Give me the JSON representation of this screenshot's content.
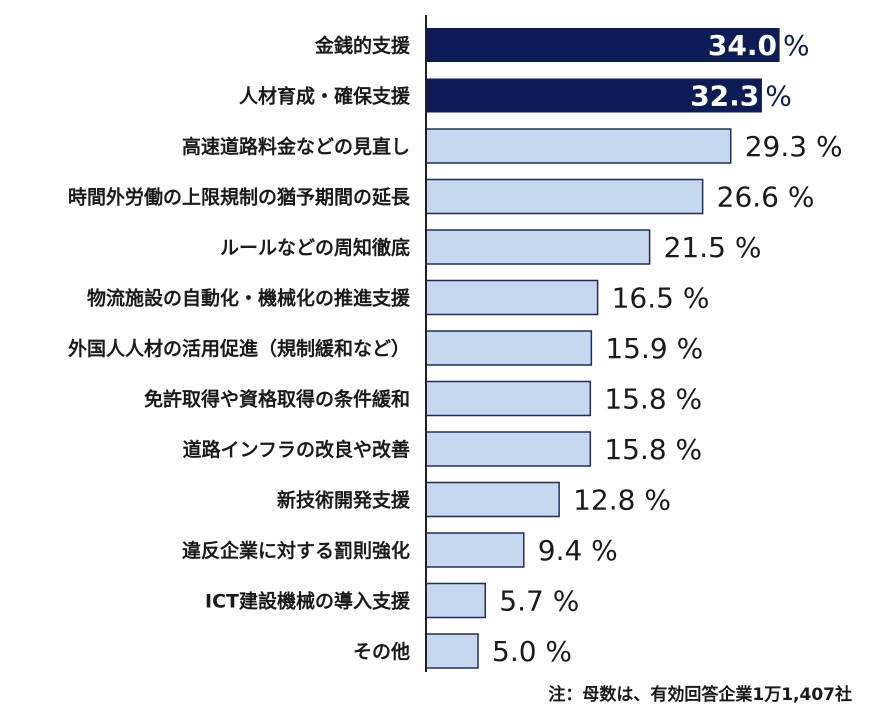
{
  "chart_data": {
    "type": "bar",
    "orientation": "horizontal",
    "categories": [
      "金銭的支援",
      "人材育成・確保支援",
      "高速道路料金などの見直し",
      "時間外労働の上限規制の猶予期間の延長",
      "ルールなどの周知徹底",
      "物流施設の自動化・機械化の推進支援",
      "外国人人材の活用促進（規制緩和など）",
      "免許取得や資格取得の条件緩和",
      "道路インフラの改良や改善",
      "新技術開発支援",
      "違反企業に対する罰則強化",
      "ICT建設機械の導入支援",
      "その他"
    ],
    "values": [
      34.0,
      32.3,
      29.3,
      26.6,
      21.5,
      16.5,
      15.9,
      15.8,
      15.8,
      12.8,
      9.4,
      5.7,
      5.0
    ],
    "value_labels": [
      "34.0",
      "32.3",
      "29.3",
      "26.6",
      "21.5",
      "16.5",
      "15.9",
      "15.8",
      "15.8",
      "12.8",
      "9.4",
      "5.7",
      "5.0"
    ],
    "unit": "%",
    "highlight_count": 2,
    "xlim": [
      0,
      40
    ],
    "grid": false,
    "legend": "none",
    "colors": {
      "highlight": "#0c1c56",
      "normal": "#c6d8ef",
      "normal_border": "#1f2d5c",
      "axis": "#222222"
    }
  },
  "note": "注：母数は、有効回答企業1万1,407社"
}
